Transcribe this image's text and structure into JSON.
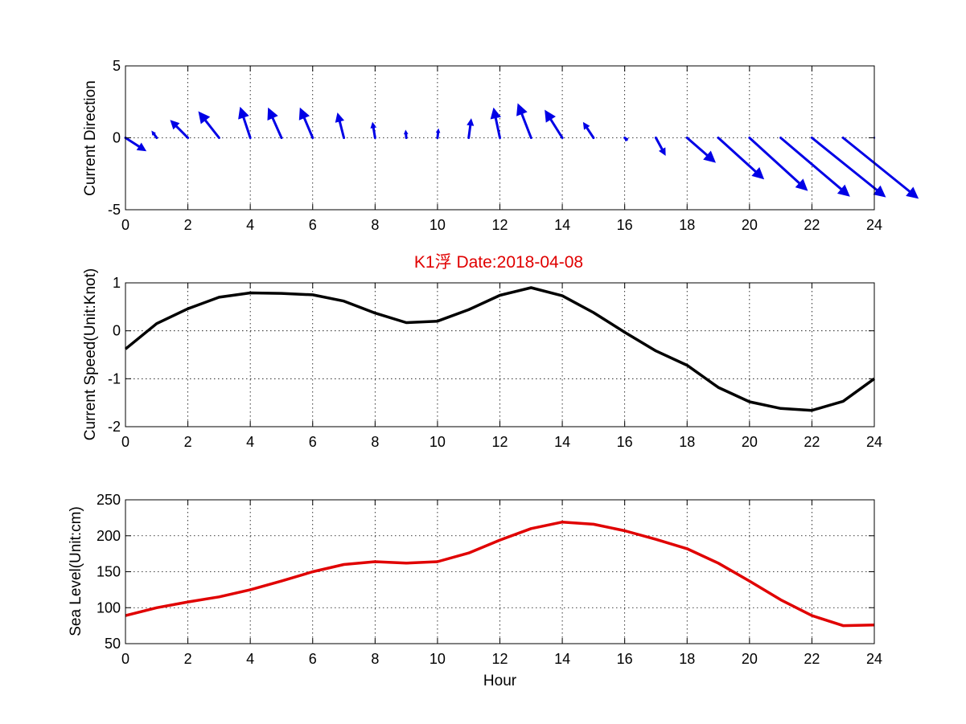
{
  "title": "K1浮    Date:2018-04-08",
  "title_color": "#e00000",
  "chart_data": [
    {
      "type": "quiver",
      "ylabel": "Current Direction",
      "xlabel": "",
      "xlim": [
        0,
        24
      ],
      "ylim": [
        -5,
        5
      ],
      "xticks": [
        0,
        2,
        4,
        6,
        8,
        10,
        12,
        14,
        16,
        18,
        20,
        22,
        24
      ],
      "yticks": [
        -5,
        0,
        5
      ],
      "grid": true,
      "color": "#0000e6",
      "x": [
        0,
        1,
        2,
        3,
        4,
        5,
        6,
        7,
        8,
        9,
        10,
        11,
        12,
        13,
        14,
        15,
        16,
        17,
        18,
        19,
        20,
        21,
        22,
        23,
        24
      ],
      "u": [
        0.65,
        -0.15,
        -0.55,
        -0.65,
        -0.32,
        -0.42,
        -0.4,
        -0.2,
        -0.08,
        -0.02,
        0.03,
        0.08,
        -0.2,
        -0.42,
        -0.55,
        -0.32,
        -0.01,
        0.3,
        0.9,
        1.45,
        1.85,
        2.2,
        2.35,
        2.4,
        0.0
      ],
      "v": [
        -0.9,
        0.45,
        1.2,
        1.8,
        2.1,
        2.05,
        2.05,
        1.7,
        1.05,
        0.5,
        0.6,
        1.3,
        2.05,
        2.35,
        1.9,
        1.05,
        0.02,
        -1.2,
        -1.7,
        -2.85,
        -3.65,
        -4.05,
        -4.1,
        -4.2,
        0.0
      ]
    },
    {
      "type": "line",
      "ylabel": "Current Speed(Unit:Knot)",
      "xlabel": "",
      "xlim": [
        0,
        24
      ],
      "ylim": [
        -2,
        1
      ],
      "xticks": [
        0,
        2,
        4,
        6,
        8,
        10,
        12,
        14,
        16,
        18,
        20,
        22,
        24
      ],
      "yticks": [
        -2,
        -1,
        0,
        1
      ],
      "grid": true,
      "color": "#000000",
      "x": [
        0,
        1,
        2,
        3,
        4,
        5,
        6,
        7,
        8,
        9,
        10,
        11,
        12,
        13,
        14,
        15,
        16,
        17,
        18,
        19,
        20,
        21,
        22,
        23,
        24
      ],
      "y": [
        -0.38,
        0.15,
        0.46,
        0.7,
        0.79,
        0.78,
        0.75,
        0.62,
        0.37,
        0.17,
        0.2,
        0.44,
        0.74,
        0.9,
        0.73,
        0.38,
        -0.03,
        -0.42,
        -0.72,
        -1.18,
        -1.48,
        -1.62,
        -1.66,
        -1.47,
        -1.0
      ]
    },
    {
      "type": "line",
      "ylabel": "Sea Level(Unit:cm)",
      "xlabel": "Hour",
      "xlim": [
        0,
        24
      ],
      "ylim": [
        50,
        250
      ],
      "xticks": [
        0,
        2,
        4,
        6,
        8,
        10,
        12,
        14,
        16,
        18,
        20,
        22,
        24
      ],
      "yticks": [
        50,
        100,
        150,
        200,
        250
      ],
      "grid": true,
      "color": "#e00000",
      "x": [
        0,
        1,
        2,
        3,
        4,
        5,
        6,
        7,
        8,
        9,
        10,
        11,
        12,
        13,
        14,
        15,
        16,
        17,
        18,
        19,
        20,
        21,
        22,
        23,
        24
      ],
      "y": [
        89,
        100,
        108,
        115,
        125,
        137,
        150,
        160,
        164,
        162,
        164,
        176,
        194,
        210,
        219,
        216,
        207,
        195,
        182,
        162,
        137,
        111,
        89,
        75,
        76
      ]
    }
  ]
}
